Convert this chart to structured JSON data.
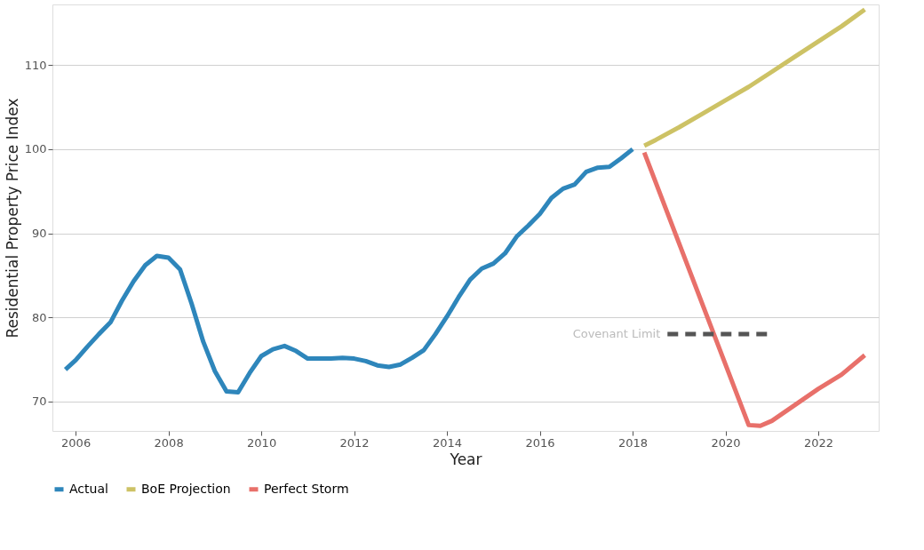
{
  "chart_data": {
    "type": "line",
    "xlabel": "Year",
    "ylabel": "Residential Property Price Index",
    "xlim": [
      2005.5,
      2023.3
    ],
    "ylim": [
      66.5,
      117.2
    ],
    "xticks": [
      2006,
      2008,
      2010,
      2012,
      2014,
      2016,
      2018,
      2020,
      2022
    ],
    "yticks": [
      70,
      80,
      90,
      100,
      110
    ],
    "grid": "y",
    "legend": "bottom",
    "line_style": "solid",
    "marker": "none",
    "annotations": [
      "Covenant Limit"
    ],
    "series": [
      {
        "name": "Actual",
        "color": "#2e86bb",
        "x": [
          2005.78,
          2006.0,
          2006.25,
          2006.5,
          2006.75,
          2007.0,
          2007.25,
          2007.5,
          2007.75,
          2008.0,
          2008.25,
          2008.5,
          2008.75,
          2009.0,
          2009.25,
          2009.5,
          2009.75,
          2010.0,
          2010.25,
          2010.5,
          2010.75,
          2011.0,
          2011.25,
          2011.5,
          2011.75,
          2012.0,
          2012.25,
          2012.5,
          2012.75,
          2013.0,
          2013.25,
          2013.5,
          2013.75,
          2014.0,
          2014.25,
          2014.5,
          2014.75,
          2015.0,
          2015.25,
          2015.5,
          2015.75,
          2016.0,
          2016.25,
          2016.5,
          2016.75,
          2017.0,
          2017.25,
          2017.5,
          2017.75,
          2018.0
        ],
        "values": [
          73.8,
          74.9,
          76.5,
          78.0,
          79.4,
          82.0,
          84.3,
          86.2,
          87.3,
          87.1,
          85.7,
          81.6,
          77.1,
          73.6,
          71.2,
          71.1,
          73.4,
          75.4,
          76.2,
          76.6,
          76.0,
          75.1,
          75.1,
          75.1,
          75.2,
          75.1,
          74.8,
          74.3,
          74.1,
          74.4,
          75.2,
          76.1,
          78.0,
          80.1,
          82.4,
          84.5,
          85.8,
          86.4,
          87.6,
          89.6,
          90.9,
          92.3,
          94.2,
          95.3,
          95.8,
          97.3,
          97.8,
          97.9,
          98.9,
          100.0
        ]
      },
      {
        "name": "BoE Projection",
        "color": "#cdc265",
        "x": [
          2018.25,
          2018.5,
          2019.0,
          2019.5,
          2020.0,
          2020.5,
          2021.0,
          2021.5,
          2022.0,
          2022.5,
          2023.0
        ],
        "values": [
          100.4,
          101.1,
          102.6,
          104.2,
          105.8,
          107.4,
          109.2,
          111.0,
          112.8,
          114.6,
          116.6
        ]
      },
      {
        "name": "Perfect Storm",
        "color": "#e8706a",
        "x": [
          2018.25,
          2020.5,
          2020.75,
          2021.0,
          2021.5,
          2022.0,
          2022.5,
          2023.0
        ],
        "values": [
          99.6,
          67.2,
          67.1,
          67.7,
          69.6,
          71.5,
          73.2,
          75.5
        ]
      },
      {
        "color": "#555555",
        "line_style": "dashed",
        "x": [
          2018.75,
          2020.95
        ],
        "values": [
          78,
          78
        ]
      }
    ]
  }
}
